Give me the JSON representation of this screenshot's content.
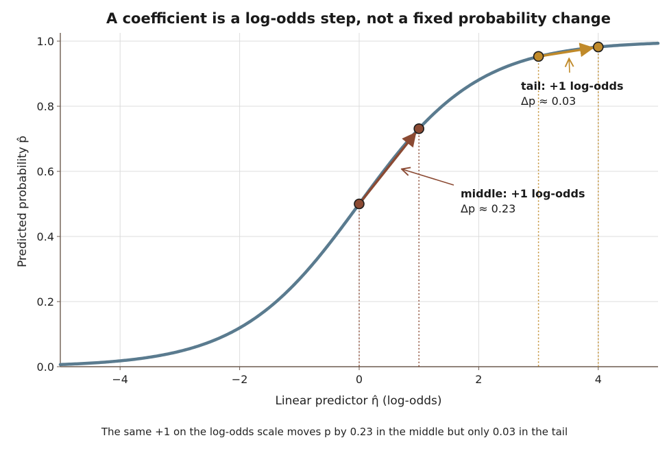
{
  "chart_data": {
    "type": "line",
    "title": "A coefficient is a log-odds step, not a fixed probability change",
    "xlabel": "Linear predictor η̂ (log-odds)",
    "ylabel": "Predicted probability p̂",
    "xlim": [
      -5,
      5
    ],
    "ylim": [
      0,
      1.02
    ],
    "x_ticks": [
      "−4",
      "−2",
      "0",
      "2",
      "4"
    ],
    "x_tick_values": [
      -4,
      -2,
      0,
      2,
      4
    ],
    "y_ticks": [
      "0.0",
      "0.2",
      "0.4",
      "0.6",
      "0.8",
      "1.0"
    ],
    "y_tick_values": [
      0,
      0.2,
      0.4,
      0.6,
      0.8,
      1.0
    ],
    "grid": true,
    "series": [
      {
        "curve": "logistic",
        "color": "#5a7b8f",
        "x": [
          -5,
          -4,
          -3,
          -2,
          -1,
          0,
          1,
          2,
          3,
          4,
          5
        ],
        "y": [
          0.007,
          0.018,
          0.047,
          0.119,
          0.269,
          0.5,
          0.731,
          0.881,
          0.953,
          0.982,
          0.993
        ]
      }
    ],
    "highlights": [
      {
        "id": "middle",
        "color": "#8b4a33",
        "points": [
          {
            "x": 0,
            "y": 0.5
          },
          {
            "x": 1,
            "y": 0.731
          }
        ],
        "label_bold": "middle:",
        "label_rest": " +1 log-odds",
        "delta_text": "Δp ≈ 0.23"
      },
      {
        "id": "tail",
        "color": "#c08a2a",
        "points": [
          {
            "x": 3,
            "y": 0.953
          },
          {
            "x": 4,
            "y": 0.982
          }
        ],
        "label_bold": "tail:",
        "label_rest": " +1 log-odds",
        "delta_text": "Δp ≈ 0.03"
      }
    ],
    "caption": "The same +1 on the log-odds scale moves p by 0.23 in the middle but only 0.03 in the tail"
  }
}
